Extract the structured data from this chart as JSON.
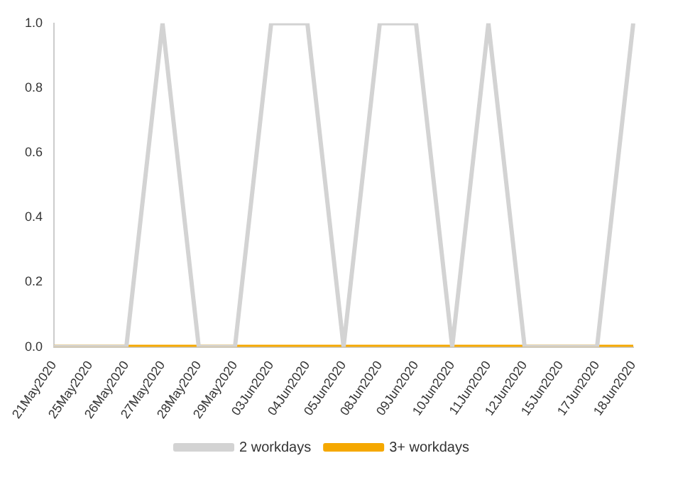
{
  "chart_data": {
    "type": "line",
    "categories": [
      "21May2020",
      "25May2020",
      "26May2020",
      "27May2020",
      "28May2020",
      "29May2020",
      "03Jun2020",
      "04Jun2020",
      "05Jun2020",
      "08Jun2020",
      "09Jun2020",
      "10Jun2020",
      "11Jun2020",
      "12Jun2020",
      "15Jun2020",
      "17Jun2020",
      "18Jun2020"
    ],
    "series": [
      {
        "name": "2 workdays",
        "color": "#d3d3d3",
        "values": [
          0,
          0,
          0,
          1,
          0,
          0,
          1,
          1,
          0,
          1,
          1,
          0,
          1,
          0,
          0,
          0,
          1
        ]
      },
      {
        "name": "3+ workdays",
        "color": "#f5a800",
        "values": [
          0,
          0,
          0,
          0,
          0,
          0,
          0,
          0,
          0,
          0,
          0,
          0,
          0,
          0,
          0,
          0,
          0
        ]
      }
    ],
    "ylim": [
      0,
      1
    ],
    "yticks": [
      {
        "value": 0,
        "label": "0.0"
      },
      {
        "value": 0.2,
        "label": "0.2"
      },
      {
        "value": 0.4,
        "label": "0.4"
      },
      {
        "value": 0.6,
        "label": "0.6"
      },
      {
        "value": 0.8,
        "label": "0.8"
      },
      {
        "value": 1,
        "label": "1.0"
      }
    ],
    "grid": false,
    "legend": "bottom",
    "marker": "none",
    "line_style": "solid"
  }
}
